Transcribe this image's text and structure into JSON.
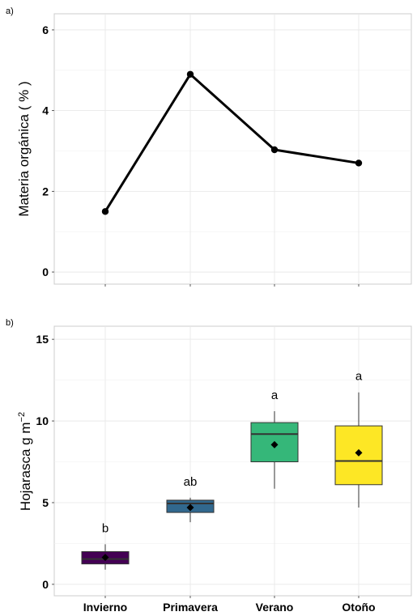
{
  "chart_data": [
    {
      "type": "line",
      "panel_label": "a)",
      "ylabel": "Materia orgánica ( % )",
      "categories": [
        "Invierno",
        "Primavera",
        "Verano",
        "Otoño"
      ],
      "values": [
        1.5,
        4.9,
        3.03,
        2.7
      ],
      "ylim": [
        -0.3,
        6.4
      ],
      "yticks": [
        0,
        2,
        4,
        6
      ],
      "grid": true,
      "line_color": "#000000"
    },
    {
      "type": "box",
      "panel_label": "b)",
      "ylabel": "Hojarasca g  m",
      "ylabel_sup": "−2",
      "categories": [
        "Invierno",
        "Primavera",
        "Verano",
        "Otoño"
      ],
      "ylim": [
        -0.7,
        15.8
      ],
      "yticks": [
        0,
        5,
        10,
        15
      ],
      "grid": true,
      "boxes": [
        {
          "name": "Invierno",
          "whisker_low": 0.9,
          "q1": 1.25,
          "median": 1.55,
          "q3": 2.0,
          "whisker_high": 2.45,
          "mean": 1.65,
          "group_label": "b",
          "color": "#440154"
        },
        {
          "name": "Primavera",
          "whisker_low": 3.8,
          "q1": 4.4,
          "median": 4.95,
          "q3": 5.15,
          "whisker_high": 5.3,
          "mean": 4.7,
          "group_label": "ab",
          "color": "#31688E"
        },
        {
          "name": "Verano",
          "whisker_low": 5.85,
          "q1": 7.5,
          "median": 9.2,
          "q3": 9.9,
          "whisker_high": 10.6,
          "mean": 8.55,
          "group_label": "a",
          "color": "#35B779"
        },
        {
          "name": "Otoño",
          "whisker_low": 4.7,
          "q1": 6.1,
          "median": 7.55,
          "q3": 9.7,
          "whisker_high": 11.75,
          "mean": 8.05,
          "group_label": "a",
          "color": "#FDE725"
        }
      ]
    }
  ]
}
